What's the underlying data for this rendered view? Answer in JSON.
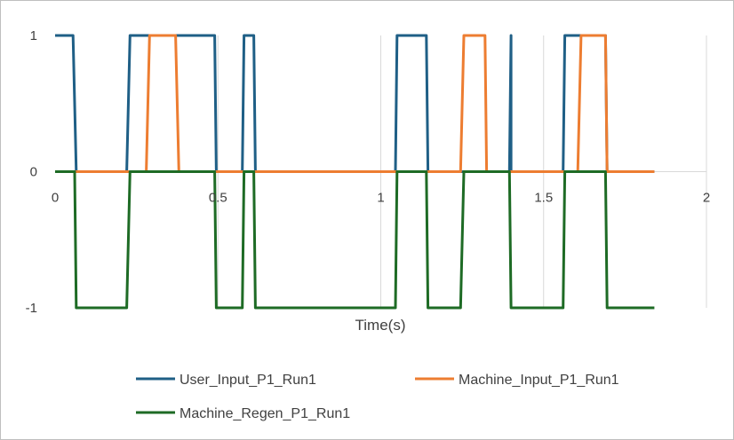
{
  "chart_data": {
    "type": "line",
    "title": "",
    "xlabel": "Time(s)",
    "ylabel": "",
    "xlim": [
      0,
      2
    ],
    "ylim": [
      -1,
      1
    ],
    "x_ticks": [
      0,
      0.5,
      1,
      1.5,
      2
    ],
    "x_tick_labels": [
      "0",
      "0.5",
      "1",
      "1.5",
      "2"
    ],
    "y_ticks": [
      1,
      0,
      -1
    ],
    "y_tick_labels": [
      "1",
      "0",
      "-1"
    ],
    "grid": "vertical",
    "legend": "bottom",
    "series": [
      {
        "name": "User_Input_P1_Run1",
        "color": "#1f5f86",
        "points": [
          [
            0,
            1
          ],
          [
            0.055,
            1
          ],
          [
            0.065,
            0
          ],
          [
            0.22,
            0
          ],
          [
            0.23,
            1
          ],
          [
            0.49,
            1
          ],
          [
            0.495,
            0
          ],
          [
            0.575,
            0
          ],
          [
            0.58,
            1
          ],
          [
            0.61,
            1
          ],
          [
            0.615,
            0
          ],
          [
            1.045,
            0
          ],
          [
            1.05,
            1
          ],
          [
            1.14,
            1
          ],
          [
            1.145,
            0
          ],
          [
            1.395,
            0
          ],
          [
            1.4,
            1
          ],
          [
            1.4,
            0
          ],
          [
            1.56,
            0
          ],
          [
            1.565,
            1
          ],
          [
            1.69,
            1
          ],
          [
            1.695,
            0
          ],
          [
            1.84,
            0
          ]
        ]
      },
      {
        "name": "Machine_Input_P1_Run1",
        "color": "#ed7d31",
        "points": [
          [
            0,
            0
          ],
          [
            0.28,
            0
          ],
          [
            0.29,
            1
          ],
          [
            0.37,
            1
          ],
          [
            0.38,
            0
          ],
          [
            1.245,
            0
          ],
          [
            1.255,
            1
          ],
          [
            1.32,
            1
          ],
          [
            1.325,
            0
          ],
          [
            1.605,
            0
          ],
          [
            1.615,
            1
          ],
          [
            1.69,
            1
          ],
          [
            1.695,
            0
          ],
          [
            1.84,
            0
          ]
        ]
      },
      {
        "name": "Machine_Regen_P1_Run1",
        "color": "#1e6b25",
        "points": [
          [
            0,
            0
          ],
          [
            0.06,
            0
          ],
          [
            0.065,
            -1
          ],
          [
            0.22,
            -1
          ],
          [
            0.23,
            0
          ],
          [
            0.49,
            0
          ],
          [
            0.495,
            -1
          ],
          [
            0.575,
            -1
          ],
          [
            0.58,
            0
          ],
          [
            0.61,
            0
          ],
          [
            0.615,
            -1
          ],
          [
            1.045,
            -1
          ],
          [
            1.05,
            0
          ],
          [
            1.14,
            0
          ],
          [
            1.145,
            -1
          ],
          [
            1.245,
            -1
          ],
          [
            1.255,
            0
          ],
          [
            1.395,
            0
          ],
          [
            1.4,
            -1
          ],
          [
            1.56,
            -1
          ],
          [
            1.565,
            0
          ],
          [
            1.69,
            0
          ],
          [
            1.695,
            -1
          ],
          [
            1.84,
            -1
          ]
        ]
      }
    ]
  }
}
